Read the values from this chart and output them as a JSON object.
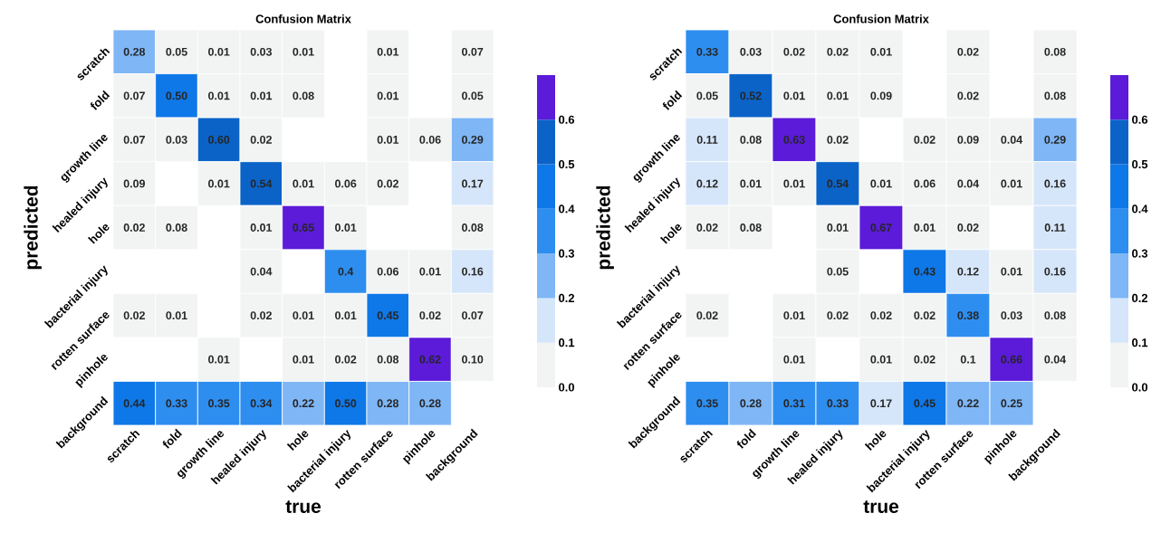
{
  "chart_data": [
    {
      "type": "heatmap",
      "title": "Confusion Matrix",
      "xlabel": "true",
      "ylabel": "predicted",
      "categories": [
        "scratch",
        "fold",
        "growth line",
        "healed injury",
        "hole",
        "bacterial injury",
        "rotten surface",
        "pinhole",
        "background"
      ],
      "y_categories": [
        "scratch",
        "fold",
        "growth line",
        "healed injury",
        "hole",
        "bacterial injury",
        "rotten surface",
        "pinhole",
        "background"
      ],
      "cells": [
        [
          0.28,
          0.05,
          0.01,
          0.03,
          0.01,
          null,
          0.01,
          null,
          0.07
        ],
        [
          0.07,
          0.5,
          0.01,
          0.01,
          0.08,
          null,
          0.01,
          null,
          0.05
        ],
        [
          0.07,
          0.03,
          0.6,
          0.02,
          null,
          null,
          0.01,
          0.06,
          0.29
        ],
        [
          0.09,
          null,
          0.01,
          0.54,
          0.01,
          0.06,
          0.02,
          null,
          0.17
        ],
        [
          0.02,
          0.08,
          null,
          0.01,
          0.65,
          0.01,
          null,
          null,
          0.08
        ],
        [
          null,
          null,
          null,
          0.04,
          null,
          0.4,
          0.06,
          0.01,
          0.16
        ],
        [
          0.02,
          0.01,
          null,
          0.02,
          0.01,
          0.01,
          0.45,
          0.02,
          0.07
        ],
        [
          null,
          null,
          0.01,
          null,
          0.01,
          0.02,
          0.08,
          0.62,
          0.1
        ],
        [
          0.44,
          0.33,
          0.35,
          0.34,
          0.22,
          0.5,
          0.28,
          0.28,
          null
        ]
      ],
      "cell_labels": [
        [
          "0.28",
          "0.05",
          "0.01",
          "0.03",
          "0.01",
          null,
          "0.01",
          null,
          "0.07"
        ],
        [
          "0.07",
          "0.50",
          "0.01",
          "0.01",
          "0.08",
          null,
          "0.01",
          null,
          "0.05"
        ],
        [
          "0.07",
          "0.03",
          "0.60",
          "0.02",
          null,
          null,
          "0.01",
          "0.06",
          "0.29"
        ],
        [
          "0.09",
          null,
          "0.01",
          "0.54",
          "0.01",
          "0.06",
          "0.02",
          null,
          "0.17"
        ],
        [
          "0.02",
          "0.08",
          null,
          "0.01",
          "0.65",
          "0.01",
          null,
          null,
          "0.08"
        ],
        [
          null,
          null,
          null,
          "0.04",
          null,
          "0.4",
          "0.06",
          "0.01",
          "0.16"
        ],
        [
          "0.02",
          "0.01",
          null,
          "0.02",
          "0.01",
          "0.01",
          "0.45",
          "0.02",
          "0.07"
        ],
        [
          null,
          null,
          "0.01",
          null,
          "0.01",
          "0.02",
          "0.08",
          "0.62",
          "0.10"
        ],
        [
          "0.44",
          "0.33",
          "0.35",
          "0.34",
          "0.22",
          "0.50",
          "0.28",
          "0.28",
          null
        ]
      ],
      "clim": [
        0,
        0.7
      ],
      "cticks": [
        {
          "value": 0,
          "label": "0.0"
        },
        0.1,
        0.2,
        0.3,
        0.4,
        0.5,
        0.6
      ]
    },
    {
      "type": "heatmap",
      "title": "Confusion Matrix",
      "xlabel": "true",
      "ylabel": "predicted",
      "categories": [
        "scratch",
        "fold",
        "growth line",
        "healed injury",
        "hole",
        "bacterial injury",
        "rotten surface",
        "pinhole",
        "background"
      ],
      "y_categories": [
        "scratch",
        "fold",
        "growth line",
        "healed injury",
        "hole",
        "bacterial injury",
        "rotten surface",
        "pinhole",
        "background"
      ],
      "cells": [
        [
          0.33,
          0.03,
          0.02,
          0.02,
          0.01,
          null,
          0.02,
          null,
          0.08
        ],
        [
          0.05,
          0.52,
          0.01,
          0.01,
          0.09,
          null,
          0.02,
          null,
          0.08
        ],
        [
          0.11,
          0.08,
          0.63,
          0.02,
          null,
          0.02,
          0.09,
          0.04,
          0.29
        ],
        [
          0.12,
          0.01,
          0.01,
          0.54,
          0.01,
          0.06,
          0.04,
          0.01,
          0.16
        ],
        [
          0.02,
          0.08,
          null,
          0.01,
          0.67,
          0.01,
          0.02,
          null,
          0.11
        ],
        [
          null,
          null,
          null,
          0.05,
          null,
          0.43,
          0.12,
          0.01,
          0.16
        ],
        [
          0.02,
          null,
          0.01,
          0.02,
          0.02,
          0.02,
          0.38,
          0.03,
          0.08
        ],
        [
          null,
          null,
          0.01,
          null,
          0.01,
          0.02,
          0.1,
          0.66,
          0.04
        ],
        [
          0.35,
          0.28,
          0.31,
          0.33,
          0.17,
          0.45,
          0.22,
          0.25,
          null
        ]
      ],
      "cell_labels": [
        [
          "0.33",
          "0.03",
          "0.02",
          "0.02",
          "0.01",
          null,
          "0.02",
          null,
          "0.08"
        ],
        [
          "0.05",
          "0.52",
          "0.01",
          "0.01",
          "0.09",
          null,
          "0.02",
          null,
          "0.08"
        ],
        [
          "0.11",
          "0.08",
          "0.63",
          "0.02",
          null,
          "0.02",
          "0.09",
          "0.04",
          "0.29"
        ],
        [
          "0.12",
          "0.01",
          "0.01",
          "0.54",
          "0.01",
          "0.06",
          "0.04",
          "0.01",
          "0.16"
        ],
        [
          "0.02",
          "0.08",
          null,
          "0.01",
          "0.67",
          "0.01",
          "0.02",
          null,
          "0.11"
        ],
        [
          null,
          null,
          null,
          "0.05",
          null,
          "0.43",
          "0.12",
          "0.01",
          "0.16"
        ],
        [
          "0.02",
          null,
          "0.01",
          "0.02",
          "0.02",
          "0.02",
          "0.38",
          "0.03",
          "0.08"
        ],
        [
          null,
          null,
          "0.01",
          null,
          "0.01",
          "0.02",
          "0.1",
          "0.66",
          "0.04"
        ],
        [
          "0.35",
          "0.28",
          "0.31",
          "0.33",
          "0.17",
          "0.45",
          "0.22",
          "0.25",
          null
        ]
      ],
      "clim": [
        0,
        0.7
      ],
      "cticks": [
        {
          "value": 0,
          "label": "0.0"
        },
        0.1,
        0.2,
        0.3,
        0.4,
        0.5,
        0.6
      ]
    }
  ]
}
